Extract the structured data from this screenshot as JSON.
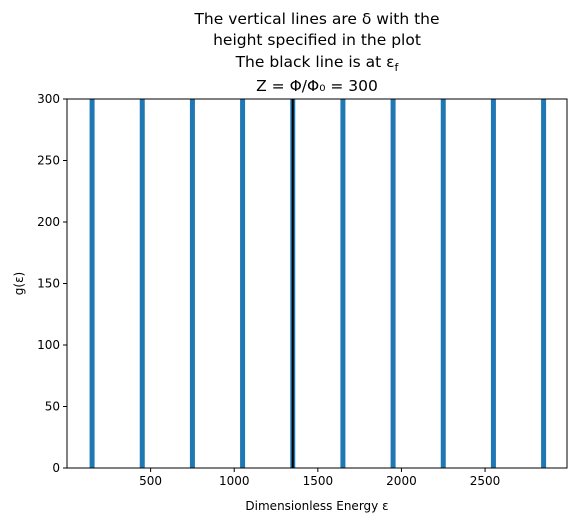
{
  "chart_data": {
    "type": "bar",
    "title_lines": [
      "The vertical lines are δ with the",
      "height specified in the plot",
      "The black line is at ε",
      "Z = Φ/Φ₀ = 300"
    ],
    "title_line3_subscript": "f",
    "xlabel": "Dimensionless Energy ε",
    "ylabel": "g(ε)",
    "xlim": [
      0,
      2990
    ],
    "ylim": [
      0,
      300
    ],
    "xticks": [
      500,
      1000,
      1500,
      2000,
      2500
    ],
    "yticks": [
      0,
      50,
      100,
      150,
      200,
      250,
      300
    ],
    "grid": false,
    "delta_series": {
      "name": "",
      "color": "#1f77b4",
      "x": [
        150,
        450,
        750,
        1050,
        1350,
        1650,
        1950,
        2250,
        2550,
        2850
      ],
      "height": [
        300,
        300,
        300,
        300,
        300,
        300,
        300,
        300,
        300,
        300
      ]
    },
    "fermi_line": {
      "x": 1350,
      "color": "#000000"
    }
  }
}
